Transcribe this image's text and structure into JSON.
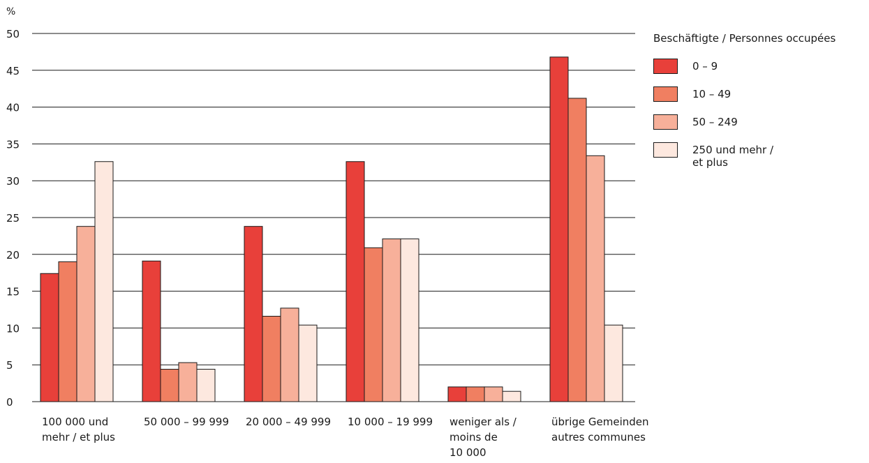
{
  "chart_data": {
    "type": "bar",
    "unit_label": "%",
    "ylim": [
      0,
      50
    ],
    "yticks": [
      0,
      5,
      10,
      15,
      20,
      25,
      30,
      35,
      40,
      45,
      50
    ],
    "grid": true,
    "categories": [
      [
        "100 000 und",
        "mehr / et plus"
      ],
      [
        "50 000 – 99 999"
      ],
      [
        "20 000 – 49 999"
      ],
      [
        "10 000 – 19 999"
      ],
      [
        "weniger als /",
        "moins de",
        "10 000"
      ],
      [
        "übrige Gemeinden",
        "autres communes"
      ]
    ],
    "legend_title": "Beschäftigte / Personnes occupées",
    "legend_position": "top-right",
    "series": [
      {
        "name": [
          "0 – 9"
        ],
        "color": "#e8403a",
        "values": [
          17.4,
          19.1,
          23.8,
          32.6,
          2.0,
          46.8
        ]
      },
      {
        "name": [
          "10 – 49"
        ],
        "color": "#f07f61",
        "values": [
          19.0,
          4.4,
          11.6,
          20.9,
          2.0,
          41.2
        ]
      },
      {
        "name": [
          "50 – 249"
        ],
        "color": "#f7b09a",
        "values": [
          23.8,
          5.3,
          12.7,
          22.1,
          2.0,
          33.4
        ]
      },
      {
        "name": [
          "250 und mehr /",
          "et plus"
        ],
        "color": "#fde8df",
        "values": [
          32.6,
          4.4,
          10.4,
          22.1,
          1.4,
          10.4
        ]
      }
    ]
  }
}
